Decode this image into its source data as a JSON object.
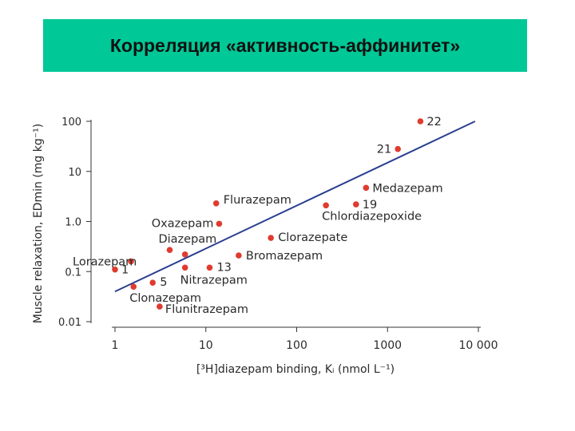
{
  "slide": {
    "title": "Корреляция «активность-аффинитет»",
    "title_bg": "#00c896"
  },
  "chart_data": {
    "type": "scatter",
    "title": "",
    "xlabel": "[³H]diazepam binding, Kᵢ (nmol L⁻¹)",
    "ylabel": "Muscle relaxation, EDmin (mg kg⁻¹)",
    "x_scale": "log",
    "y_scale": "log",
    "xlim": [
      1,
      10000
    ],
    "ylim": [
      0.01,
      100
    ],
    "x_ticks": [
      1,
      10,
      100,
      1000,
      10000
    ],
    "x_tick_labels": [
      "1",
      "10",
      "100",
      "1000",
      "10 000"
    ],
    "y_ticks": [
      0.01,
      0.1,
      1,
      10,
      100
    ],
    "y_tick_labels": [
      "0.01",
      "0.1",
      "1.0",
      "10",
      "100"
    ],
    "grid": false,
    "point_color": "#e03b2e",
    "line_color": "#2a3f8f",
    "points": [
      {
        "label": "22",
        "x": 2300,
        "y": 100
      },
      {
        "label": "21",
        "x": 1300,
        "y": 28
      },
      {
        "label": "Medazepam",
        "x": 580,
        "y": 4.7
      },
      {
        "label": "19",
        "x": 450,
        "y": 2.2
      },
      {
        "label": "Chlordiazepoxide",
        "x": 210,
        "y": 2.1
      },
      {
        "label": "Flurazepam",
        "x": 13,
        "y": 2.3
      },
      {
        "label": "Oxazepam",
        "x": 14,
        "y": 0.9
      },
      {
        "label": "Clorazepate",
        "x": 52,
        "y": 0.47
      },
      {
        "label": "Diazepam",
        "x": 4.0,
        "y": 0.27
      },
      {
        "label": "",
        "x": 5.9,
        "y": 0.22
      },
      {
        "label": "Bromazepam",
        "x": 23,
        "y": 0.21
      },
      {
        "label": "Lorazepam",
        "x": 1.5,
        "y": 0.16
      },
      {
        "label": "1",
        "x": 1.0,
        "y": 0.11
      },
      {
        "label": "13",
        "x": 11,
        "y": 0.12
      },
      {
        "label": "Nitrazepam",
        "x": 5.9,
        "y": 0.12
      },
      {
        "label": "5",
        "x": 2.6,
        "y": 0.06
      },
      {
        "label": "Clonazepam",
        "x": 1.6,
        "y": 0.05
      },
      {
        "label": "Flunitrazepam",
        "x": 3.1,
        "y": 0.02
      }
    ],
    "trend_line": {
      "x": [
        1.0,
        9200
      ],
      "y": [
        0.04,
        100
      ]
    }
  }
}
